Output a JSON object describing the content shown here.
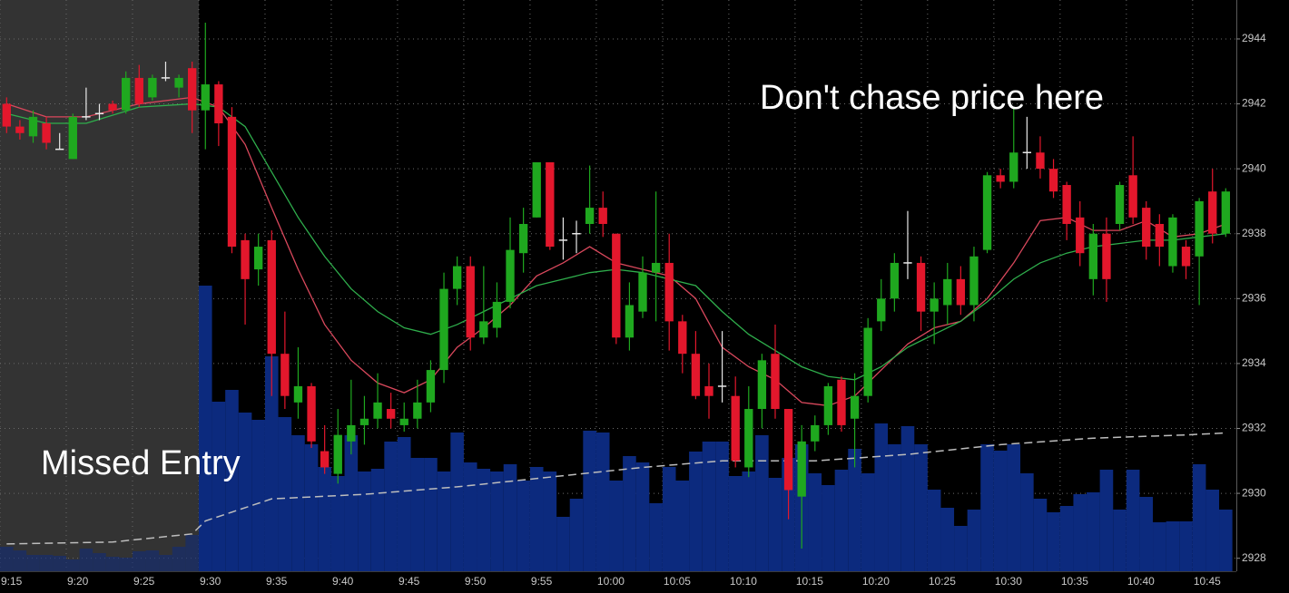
{
  "chart_data": {
    "type": "candlestick",
    "x": [
      555.5,
      556.5,
      557.5,
      558.5,
      559.5,
      560.5,
      561.5,
      562.5,
      563.5,
      564.5,
      565.5,
      566.5,
      567.5,
      568.5,
      569.5,
      570.5,
      571.5,
      572.5,
      573.5,
      574.5,
      575.5,
      576.5,
      577.5,
      578.5,
      579.5,
      580.5,
      581.5,
      582.5,
      583.5,
      584.5,
      585.5,
      586.5,
      587.5,
      588.5,
      589.5,
      590.5,
      591.5,
      592.5,
      593.5,
      594.5,
      595.5,
      596.5,
      597.5,
      598.5,
      599.5,
      600.5,
      601.5,
      602.5,
      603.5,
      604.5,
      605.5,
      606.5,
      607.5,
      608.5,
      609.5,
      610.5,
      611.5,
      612.5,
      613.5,
      614.5,
      615.5,
      616.5,
      617.5,
      618.5,
      619.5,
      620.5,
      621.5,
      622.5,
      623.5,
      624.5,
      625.5,
      626.5,
      627.5,
      628.5,
      629.5,
      630.5,
      631.5,
      632.5,
      633.5,
      634.5,
      635.5,
      636.5,
      637.5,
      638.5,
      639.5,
      640.5,
      641.5,
      642.5,
      643.5,
      644.5,
      645.5,
      646.5,
      647.5
    ],
    "open": [
      2942.0,
      2941.3,
      2941.0,
      2941.4,
      2940.6,
      2940.3,
      2941.6,
      2941.7,
      2942.0,
      2941.8,
      2942.8,
      2942.2,
      2942.8,
      2942.5,
      2943.1,
      2941.8,
      2942.6,
      2941.6,
      2937.8,
      2936.9,
      2937.8,
      2934.3,
      2932.8,
      2933.3,
      2931.3,
      2930.6,
      2931.6,
      2932.1,
      2932.3,
      2932.6,
      2932.1,
      2932.3,
      2932.8,
      2933.8,
      2936.3,
      2937.0,
      2934.8,
      2935.1,
      2935.9,
      2937.4,
      2938.5,
      2940.2,
      2937.8,
      2938.0,
      2938.3,
      2938.8,
      2938.0,
      2934.8,
      2935.6,
      2936.8,
      2937.1,
      2935.3,
      2934.3,
      2933.3,
      2933.3,
      2933.0,
      2930.8,
      2932.6,
      2934.3,
      2932.6,
      2929.9,
      2931.6,
      2932.1,
      2933.5,
      2932.3,
      2933.0,
      2935.3,
      2936.0,
      2937.1,
      2937.1,
      2935.6,
      2935.8,
      2936.6,
      2935.8,
      2937.5,
      2939.8,
      2939.6,
      2940.5,
      2940.5,
      2940.0,
      2939.5,
      2938.5,
      2936.6,
      2938.0,
      2938.3,
      2939.8,
      2938.8,
      2938.3,
      2937.0,
      2937.6,
      2937.3,
      2939.3,
      2938.0
    ],
    "high": [
      2942.2,
      2941.5,
      2941.8,
      2941.6,
      2941.1,
      2941.7,
      2942.5,
      2942.0,
      2942.1,
      2943.0,
      2943.2,
      2942.9,
      2943.3,
      2942.9,
      2943.3,
      2944.5,
      2942.7,
      2941.9,
      2938.0,
      2938.0,
      2938.1,
      2935.6,
      2934.5,
      2933.4,
      2932.1,
      2932.6,
      2933.5,
      2933.0,
      2933.7,
      2933.1,
      2932.8,
      2933.5,
      2934.1,
      2936.8,
      2937.3,
      2937.3,
      2937.0,
      2936.5,
      2938.5,
      2938.8,
      2940.2,
      2940.2,
      2938.5,
      2938.4,
      2940.1,
      2939.3,
      2938.0,
      2936.5,
      2937.3,
      2939.3,
      2938.0,
      2935.5,
      2935.0,
      2934.0,
      2935.0,
      2933.6,
      2933.3,
      2934.3,
      2935.2,
      2932.6,
      2932.1,
      2932.4,
      2933.4,
      2933.6,
      2933.7,
      2935.4,
      2936.6,
      2937.4,
      2938.7,
      2937.3,
      2936.5,
      2937.1,
      2937.0,
      2937.6,
      2939.9,
      2940.0,
      2941.9,
      2941.6,
      2941.0,
      2940.3,
      2939.6,
      2939.0,
      2938.3,
      2938.5,
      2939.6,
      2941.0,
      2939.0,
      2938.6,
      2938.6,
      2937.8,
      2939.1,
      2940.0,
      2939.4
    ],
    "low": [
      2941.1,
      2940.9,
      2940.8,
      2940.6,
      2940.6,
      2940.3,
      2941.5,
      2941.5,
      2941.7,
      2941.7,
      2941.9,
      2942.1,
      2942.7,
      2942.2,
      2941.1,
      2940.6,
      2940.7,
      2937.4,
      2935.2,
      2936.4,
      2933.0,
      2932.6,
      2932.3,
      2931.4,
      2930.6,
      2930.3,
      2931.2,
      2931.5,
      2932.0,
      2932.0,
      2931.9,
      2932.0,
      2932.5,
      2933.4,
      2935.8,
      2934.4,
      2934.6,
      2934.8,
      2935.7,
      2936.8,
      2938.5,
      2937.5,
      2937.2,
      2937.4,
      2938.0,
      2937.9,
      2934.6,
      2934.4,
      2935.4,
      2935.3,
      2934.4,
      2933.7,
      2932.9,
      2932.3,
      2932.8,
      2930.8,
      2930.5,
      2932.0,
      2932.3,
      2929.2,
      2928.3,
      2931.3,
      2931.8,
      2931.9,
      2930.8,
      2932.8,
      2935.0,
      2935.6,
      2936.6,
      2935.0,
      2934.6,
      2935.2,
      2935.5,
      2935.3,
      2937.4,
      2939.4,
      2939.4,
      2940.0,
      2939.7,
      2939.1,
      2937.8,
      2937.0,
      2936.1,
      2935.9,
      2938.1,
      2938.3,
      2937.2,
      2937.0,
      2936.8,
      2936.6,
      2935.8,
      2937.7,
      2937.9
    ],
    "close": [
      2941.3,
      2941.1,
      2941.6,
      2940.8,
      2940.6,
      2941.6,
      2941.6,
      2941.7,
      2941.8,
      2942.8,
      2942.0,
      2942.8,
      2942.8,
      2942.8,
      2941.8,
      2942.6,
      2941.4,
      2937.6,
      2936.6,
      2937.6,
      2934.3,
      2933.0,
      2933.3,
      2931.6,
      2930.8,
      2931.8,
      2932.1,
      2932.3,
      2932.8,
      2932.3,
      2932.3,
      2932.8,
      2933.8,
      2936.3,
      2937.0,
      2934.8,
      2935.3,
      2935.9,
      2937.5,
      2938.3,
      2940.2,
      2937.6,
      2937.8,
      2938.0,
      2938.8,
      2938.3,
      2934.8,
      2935.8,
      2936.8,
      2937.1,
      2935.3,
      2934.3,
      2933.0,
      2933.0,
      2933.3,
      2931.0,
      2932.6,
      2934.1,
      2932.6,
      2930.1,
      2931.6,
      2932.1,
      2933.3,
      2932.1,
      2933.0,
      2935.1,
      2936.0,
      2937.1,
      2937.1,
      2935.6,
      2936.0,
      2936.6,
      2935.8,
      2937.3,
      2939.8,
      2939.6,
      2940.5,
      2940.5,
      2940.0,
      2939.3,
      2938.3,
      2937.4,
      2938.0,
      2936.6,
      2939.5,
      2938.5,
      2937.6,
      2937.6,
      2938.5,
      2937.0,
      2939.0,
      2938.0,
      2939.3
    ],
    "volume": [
      27,
      23,
      18,
      18,
      17,
      13,
      25,
      20,
      16,
      15,
      22,
      23,
      18,
      27,
      40,
      315,
      187,
      200,
      175,
      167,
      237,
      170,
      150,
      140,
      115,
      105,
      150,
      110,
      113,
      143,
      148,
      125,
      125,
      110,
      153,
      120,
      113,
      110,
      118,
      100,
      115,
      110,
      60,
      80,
      155,
      153,
      100,
      127,
      120,
      75,
      115,
      100,
      132,
      143,
      143,
      105,
      110,
      150,
      103,
      125,
      140,
      108,
      95,
      112,
      135,
      108,
      163,
      140,
      160,
      140,
      90,
      70,
      50,
      68,
      140,
      133,
      140,
      108,
      80,
      65,
      72,
      85,
      87,
      112,
      68,
      112,
      82,
      54,
      55,
      55,
      118,
      90,
      68
    ],
    "vlim": [
      0,
      630
    ],
    "lines": [
      {
        "color": "#d9485c",
        "style": "solid",
        "x": [
          555.5,
          558.5,
          561.5,
          565.5,
          569.5,
          571.5,
          573.5,
          575.5,
          577.5,
          579.5,
          581.5,
          583.5,
          585.5,
          587.5,
          589.5,
          591.5,
          593.5,
          595.5,
          597.5,
          599.5,
          601.5,
          603.5,
          605.5,
          607.5,
          609.5,
          611.5,
          613.5,
          615.5,
          617.5,
          619.5,
          621.5,
          623.5,
          625.5,
          627.5,
          629.5,
          631.5,
          633.5,
          635.5,
          637.5,
          639.5,
          641.5,
          643.5,
          645.5,
          647.5
        ],
        "values": [
          2942.0,
          2941.6,
          2941.6,
          2942.0,
          2942.2,
          2941.9,
          2940.75,
          2938.8,
          2936.9,
          2935.2,
          2934.1,
          2933.4,
          2933.1,
          2933.5,
          2934.5,
          2935.1,
          2935.8,
          2936.7,
          2937.1,
          2937.6,
          2937.1,
          2936.9,
          2936.7,
          2936.0,
          2934.5,
          2933.9,
          2933.5,
          2932.8,
          2932.7,
          2933.0,
          2933.8,
          2934.6,
          2935.1,
          2935.3,
          2936.0,
          2937.1,
          2938.4,
          2938.5,
          2938.1,
          2938.1,
          2938.4,
          2937.9,
          2938.0,
          2938.3
        ]
      },
      {
        "color": "#2fae4c",
        "style": "solid",
        "x": [
          555.5,
          558.5,
          561.5,
          565.5,
          569.5,
          571.5,
          573.5,
          575.5,
          577.5,
          579.5,
          581.5,
          583.5,
          585.5,
          587.5,
          589.5,
          591.5,
          593.5,
          595.5,
          597.5,
          599.5,
          601.5,
          603.5,
          605.5,
          607.5,
          609.5,
          611.5,
          613.5,
          615.5,
          617.5,
          619.5,
          621.5,
          623.5,
          625.5,
          627.5,
          629.5,
          631.5,
          633.5,
          635.5,
          637.5,
          639.5,
          641.5,
          643.5,
          645.5,
          647.5
        ],
        "values": [
          2941.7,
          2941.4,
          2941.4,
          2941.9,
          2942.0,
          2941.9,
          2941.3,
          2939.9,
          2938.5,
          2937.3,
          2936.3,
          2935.6,
          2935.1,
          2934.9,
          2935.2,
          2935.6,
          2936.0,
          2936.4,
          2936.6,
          2936.8,
          2936.9,
          2936.8,
          2936.6,
          2936.4,
          2935.6,
          2934.9,
          2934.4,
          2933.9,
          2933.6,
          2933.5,
          2933.9,
          2934.5,
          2934.9,
          2935.3,
          2935.9,
          2936.6,
          2937.1,
          2937.4,
          2937.6,
          2937.7,
          2937.8,
          2937.8,
          2937.9,
          2938.0
        ]
      },
      {
        "color": "#bdbdbd",
        "style": "dashed",
        "x": [
          555.5,
          563.5,
          569.5,
          570.5,
          575.5,
          582.5,
          589.5,
          596.5,
          603.5,
          609.5,
          616.5,
          623.5,
          630.5,
          637.5,
          644.5,
          647.5
        ],
        "values": [
          2928.44,
          2928.5,
          2928.75,
          2929.15,
          2929.83,
          2929.97,
          2930.2,
          2930.5,
          2930.8,
          2931.0,
          2931.0,
          2931.2,
          2931.5,
          2931.7,
          2931.8,
          2931.86
        ]
      }
    ],
    "up_color": "#1fa81f",
    "down_color": "#e3172c",
    "doji_color": "#e8e8e8",
    "volume_color": "#0c2a7e",
    "shaded_xlim": [
      555,
      570
    ],
    "xlim": [
      555,
      648.3
    ],
    "ylim": [
      2927.6,
      2945.2
    ],
    "xticks": [
      {
        "value": 555,
        "label": "9:15"
      },
      {
        "value": 560,
        "label": "9:20"
      },
      {
        "value": 565,
        "label": "9:25"
      },
      {
        "value": 570,
        "label": "9:30"
      },
      {
        "value": 575,
        "label": "9:35"
      },
      {
        "value": 580,
        "label": "9:40"
      },
      {
        "value": 585,
        "label": "9:45"
      },
      {
        "value": 590,
        "label": "9:50"
      },
      {
        "value": 595,
        "label": "9:55"
      },
      {
        "value": 600,
        "label": "10:00"
      },
      {
        "value": 605,
        "label": "10:05"
      },
      {
        "value": 610,
        "label": "10:10"
      },
      {
        "value": 615,
        "label": "10:15"
      },
      {
        "value": 620,
        "label": "10:20"
      },
      {
        "value": 625,
        "label": "10:25"
      },
      {
        "value": 630,
        "label": "10:30"
      },
      {
        "value": 635,
        "label": "10:35"
      },
      {
        "value": 640,
        "label": "10:40"
      },
      {
        "value": 645,
        "label": "10:45"
      }
    ],
    "yticks": [
      2928,
      2930,
      2932,
      2934,
      2936,
      2938,
      2940,
      2942,
      2944
    ],
    "grid": true,
    "annotations": [
      "Don't chase price here",
      "Missed Entry"
    ]
  }
}
